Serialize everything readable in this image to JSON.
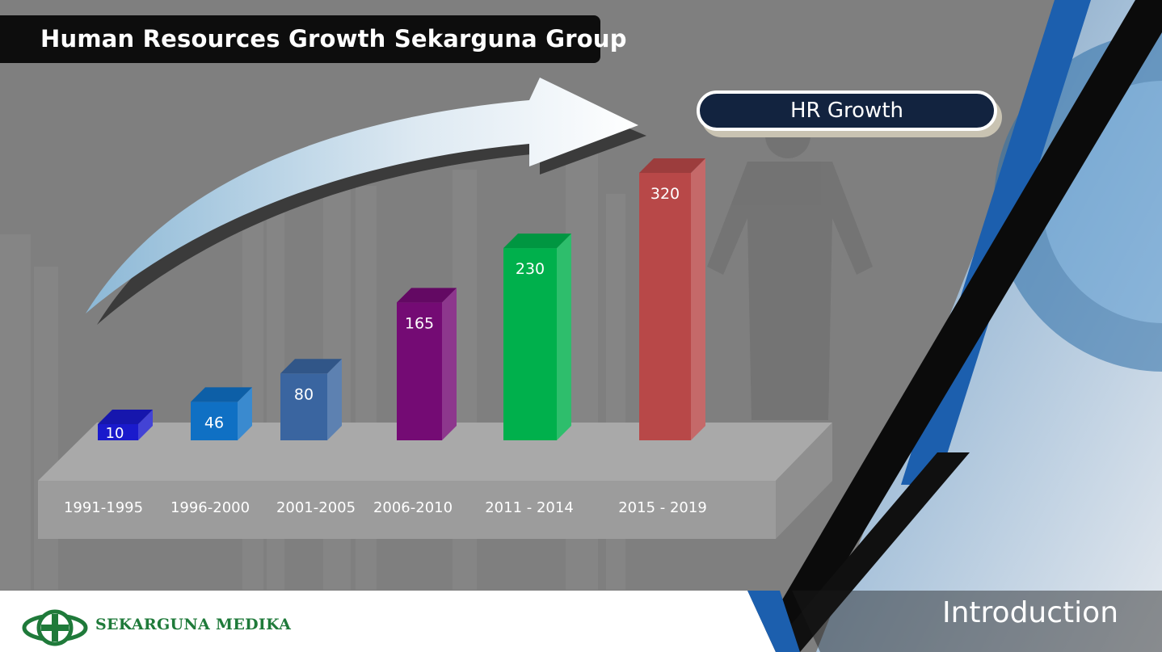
{
  "header": {
    "title": "Human Resources Growth Sekarguna Group"
  },
  "legend": {
    "label": "HR Growth"
  },
  "footer": {
    "company": "SEKARGUNA MEDIKA",
    "section": "Introduction"
  },
  "colors": {
    "background": "#7f7f7f",
    "platform_top": "#a9a9a9",
    "platform_front": "#9c9c9c",
    "legend_fill": "#12233f",
    "logo_green": "#1f7a3a",
    "accent_blue": "#1c5fae"
  },
  "chart_data": {
    "type": "bar",
    "title": "HR Growth",
    "xlabel": "",
    "ylabel": "",
    "ylim": [
      0,
      320
    ],
    "grid": false,
    "legend_position": "top-right",
    "categories": [
      "1991-1995",
      "1996-2000",
      "2001-2005",
      "2006-2010",
      "2011 - 2014",
      "2015 - 2019"
    ],
    "series": [
      {
        "name": "HR Growth",
        "values": [
          10,
          46,
          80,
          165,
          230,
          320
        ]
      }
    ],
    "data_labels": [
      "10",
      "46",
      "80",
      "165",
      "230",
      "320"
    ],
    "bar_colors": [
      "#1a1acc",
      "#0f70c4",
      "#3a65a0",
      "#740b74",
      "#00b04c",
      "#b84848"
    ]
  }
}
